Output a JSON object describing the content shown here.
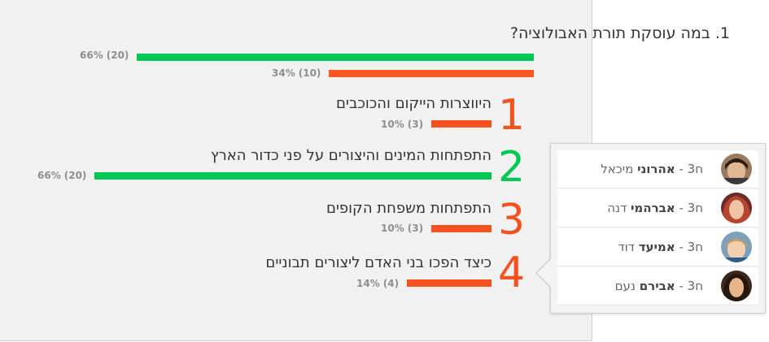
{
  "question": {
    "title": "1. במה עוסקת תורת האבולוציה?",
    "summary": [
      {
        "count": "(20)",
        "percent": "66%",
        "value": 66,
        "color": "#00c853"
      },
      {
        "count": "(10)",
        "percent": "34%",
        "value": 34,
        "color": "#ff5722"
      }
    ]
  },
  "options": [
    {
      "number": "1",
      "text": "היווצרות הייקום והכוכבים",
      "count": "(3)",
      "percent": "10%",
      "value": 10,
      "color": "#f4511e"
    },
    {
      "number": "2",
      "text": "התפתחות המינים והיצורים על פני כדור הארץ",
      "count": "(20)",
      "percent": "66%",
      "value": 66,
      "color": "#00c853"
    },
    {
      "number": "3",
      "text": "התפתחות משפחת הקופים",
      "count": "(3)",
      "percent": "10%",
      "value": 10,
      "color": "#f4511e"
    },
    {
      "number": "4",
      "text": "כיצד הפכו בני האדם ליצורים תבוניים",
      "count": "(4)",
      "percent": "14%",
      "value": 14,
      "color": "#f4511e"
    }
  ],
  "voters": [
    {
      "class": "ח3",
      "last": "אהרוני",
      "first": "מיכאל",
      "avatar": "boy-dark-hair"
    },
    {
      "class": "ח3",
      "last": "אברהמי",
      "first": "דנה",
      "avatar": "girl-red-hair"
    },
    {
      "class": "ח3",
      "last": "אמיעד",
      "first": "דוד",
      "avatar": "boy-blond"
    },
    {
      "class": "ח3",
      "last": "אבירם",
      "first": "נעם",
      "avatar": "girl-dark-hair"
    }
  ],
  "chart_data": {
    "type": "bar",
    "title": "1. במה עוסקת תורת האבולוציה?",
    "categories": [
      "היווצרות הייקום והכוכבים",
      "התפתחות המינים והיצורים על פני כדור הארץ",
      "התפתחות משפחת הקופים",
      "כיצד הפכו בני האדם ליצורים תבוניים"
    ],
    "values": [
      10,
      66,
      10,
      14
    ],
    "counts": [
      3,
      20,
      3,
      4
    ],
    "summary": {
      "correct": {
        "percent": 66,
        "count": 20
      },
      "incorrect": {
        "percent": 34,
        "count": 10
      }
    }
  }
}
